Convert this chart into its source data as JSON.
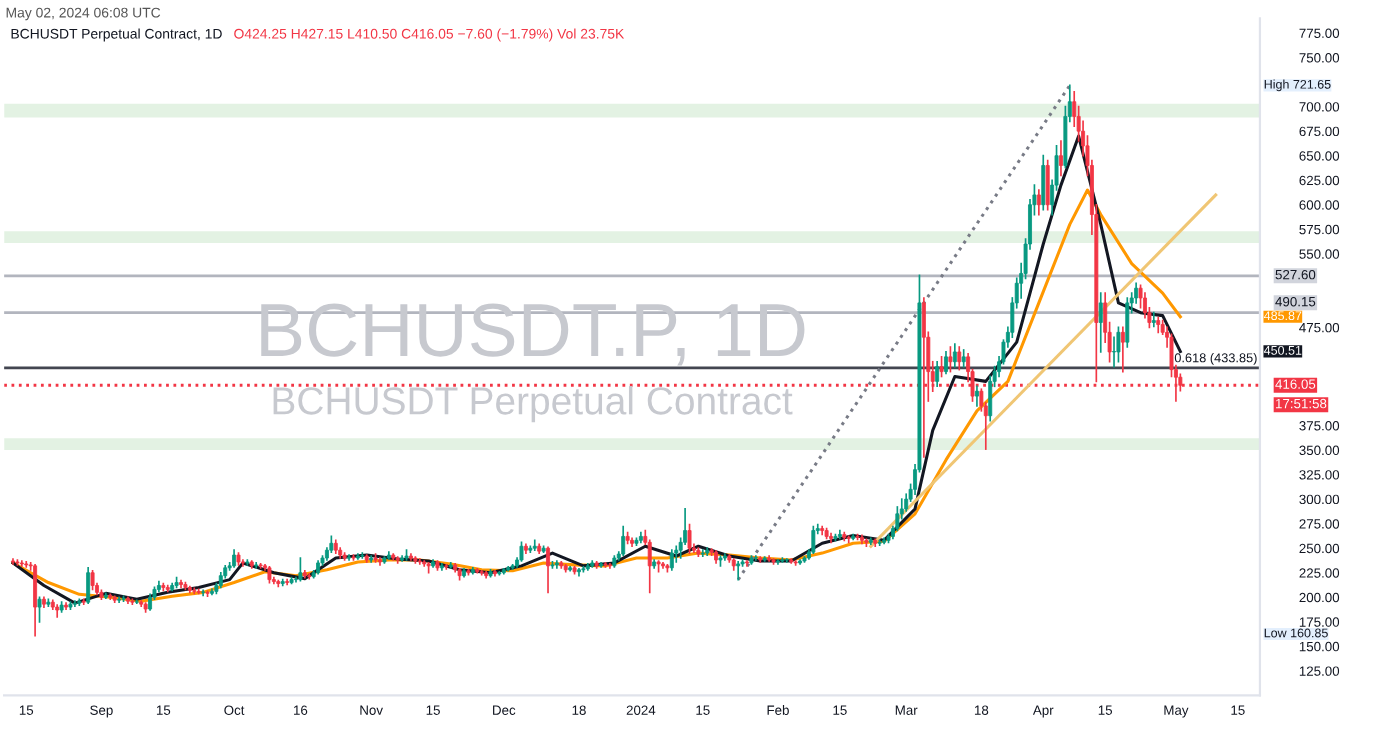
{
  "chart_data": {
    "type": "candlestick",
    "title": "BCHUSDT Perpetual Contract, 1D",
    "annotations": [
      "May 02, 2024 06:08 UTC",
      "O424.25 H427.15 L410.50 C416.05 −7.60 (−1.79%) Vol 23.75K",
      "BCHUSDT.P, 1D",
      "BCHUSDT Perpetual Contract",
      "17:51:58",
      "High 721.65",
      "Low 160.85",
      "485.87",
      "450.51"
    ],
    "colors": [
      "#f23645",
      "#f23645",
      "#f23645",
      "#f23645",
      "#f23645",
      "#f23645",
      "#089981",
      "#f23645",
      "#089981",
      "#f23645",
      "#f23645",
      "#089981",
      "#f23645",
      "#089981",
      "#089981",
      "#089981",
      "#f23645",
      "#089981",
      "#f23645",
      "#f23645",
      "#f23645",
      "#089981",
      "#f23645",
      "#f23645",
      "#089981",
      "#089981",
      "#f23645",
      "#f23645",
      "#089981",
      "#f23645",
      "#f23645",
      "#089981",
      "#089981",
      "#089981",
      "#f23645",
      "#f23645",
      "#089981",
      "#089981",
      "#f23645",
      "#f23645",
      "#f23645",
      "#f23645",
      "#f23645",
      "#089981",
      "#f23645",
      "#089981",
      "#089981",
      "#089981",
      "#089981",
      "#089981",
      "#089981",
      "#f23645",
      "#f23645",
      "#089981",
      "#f23645",
      "#089981",
      "#f23645",
      "#f23645",
      "#f23645",
      "#f23645",
      "#f23645",
      "#089981",
      "#f23645",
      "#089981",
      "#089981",
      "#089981",
      "#f23645",
      "#f23645",
      "#089981",
      "#089981",
      "#089981",
      "#089981",
      "#089981",
      "#f23645",
      "#f23645",
      "#f23645",
      "#089981",
      "#f23645",
      "#089981",
      "#089981",
      "#f23645",
      "#089981",
      "#f23645",
      "#f23645",
      "#089981",
      "#089981",
      "#f23645",
      "#f23645",
      "#089981",
      "#089981",
      "#f23645",
      "#f23645",
      "#f23645",
      "#f23645",
      "#f23645",
      "#089981",
      "#f23645",
      "#089981",
      "#f23645",
      "#089981",
      "#f23645",
      "#f23645",
      "#089981",
      "#f23645",
      "#089981",
      "#f23645",
      "#f23645",
      "#f23645",
      "#089981",
      "#f23645",
      "#089981",
      "#089981",
      "#089981",
      "#089981",
      "#089981",
      "#089981",
      "#f23645",
      "#089981",
      "#089981",
      "#f23645",
      "#089981",
      "#f23645",
      "#089981",
      "#089981",
      "#f23645",
      "#f23645",
      "#089981",
      "#f23645",
      "#089981",
      "#089981",
      "#089981",
      "#089981",
      "#f23645",
      "#089981",
      "#f23645",
      "#f23645",
      "#089981",
      "#089981",
      "#089981",
      "#f23645",
      "#f23645",
      "#089981",
      "#089981",
      "#f23645",
      "#f23645",
      "#089981",
      "#f23645",
      "#f23645",
      "#f23645",
      "#089981",
      "#089981",
      "#089981",
      "#089981",
      "#f23645",
      "#f23645",
      "#f23645",
      "#089981",
      "#089981",
      "#f23645",
      "#f23645",
      "#089981",
      "#089981",
      "#f23645",
      "#f23645",
      "#089981",
      "#089981",
      "#f23645",
      "#089981",
      "#089981",
      "#f23645",
      "#089981",
      "#f23645",
      "#f23645",
      "#089981",
      "#089981",
      "#089981",
      "#f23645",
      "#f23645",
      "#089981",
      "#089981",
      "#089981",
      "#089981",
      "#089981",
      "#f23645",
      "#f23645",
      "#f23645",
      "#089981",
      "#089981",
      "#f23645",
      "#f23645",
      "#089981",
      "#f23645",
      "#f23645",
      "#f23645",
      "#089981",
      "#f23645",
      "#089981",
      "#089981",
      "#089981",
      "#089981",
      "#089981",
      "#089981",
      "#089981",
      "#089981",
      "#089981",
      "#089981",
      "#f23645",
      "#f23645",
      "#f23645",
      "#089981",
      "#f23645",
      "#089981",
      "#f23645",
      "#089981",
      "#f23645",
      "#089981",
      "#f23645",
      "#f23645",
      "#089981",
      "#f23645",
      "#f23645",
      "#089981",
      "#089981",
      "#089981",
      "#089981",
      "#089981",
      "#089981",
      "#089981",
      "#089981",
      "#089981",
      "#089981",
      "#089981",
      "#f23645",
      "#089981",
      "#f23645",
      "#089981",
      "#089981",
      "#f23645",
      "#089981",
      "#089981",
      "#f23645",
      "#f23645",
      "#f23645",
      "#f23645",
      "#f23645",
      "#f23645",
      "#089981",
      "#f23645",
      "#f23645",
      "#089981",
      "#089981",
      "#f23645",
      "#089981",
      "#089981",
      "#089981",
      "#f23645",
      "#f23645",
      "#f23645",
      "#089981",
      "#f23645",
      "#f23645",
      "#f23645",
      "#f23645",
      "#f23645",
      "#f23645"
    ],
    "x": [
      "2023-08-12",
      "2023-08-13",
      "2023-08-14",
      "2023-08-15",
      "2023-08-16",
      "2023-08-17",
      "2023-08-18",
      "2023-08-19",
      "2023-08-20",
      "2023-08-21",
      "2023-08-22",
      "2023-08-23",
      "2023-08-24",
      "2023-08-25",
      "2023-08-26",
      "2023-08-27",
      "2023-08-28",
      "2023-08-29",
      "2023-08-30",
      "2023-08-31",
      "2023-09-01",
      "2023-09-02",
      "2023-09-03",
      "2023-09-04",
      "2023-09-05",
      "2023-09-06",
      "2023-09-07",
      "2023-09-08",
      "2023-09-09",
      "2023-09-10",
      "2023-09-11",
      "2023-09-12",
      "2023-09-13",
      "2023-09-14",
      "2023-09-15",
      "2023-09-16",
      "2023-09-17",
      "2023-09-18",
      "2023-09-19",
      "2023-09-20",
      "2023-09-21",
      "2023-09-22",
      "2023-09-23",
      "2023-09-24",
      "2023-09-25",
      "2023-09-26",
      "2023-09-27",
      "2023-09-28",
      "2023-09-29",
      "2023-09-30",
      "2023-10-01",
      "2023-10-02",
      "2023-10-03",
      "2023-10-04",
      "2023-10-05",
      "2023-10-06",
      "2023-10-07",
      "2023-10-08",
      "2023-10-09",
      "2023-10-10",
      "2023-10-11",
      "2023-10-12",
      "2023-10-13",
      "2023-10-14",
      "2023-10-15",
      "2023-10-16",
      "2023-10-17",
      "2023-10-18",
      "2023-10-19",
      "2023-10-20",
      "2023-10-21",
      "2023-10-22",
      "2023-10-23",
      "2023-10-24",
      "2023-10-25",
      "2023-10-26",
      "2023-10-27",
      "2023-10-28",
      "2023-10-29",
      "2023-10-30",
      "2023-10-31",
      "2023-11-01",
      "2023-11-02",
      "2023-11-03",
      "2023-11-04",
      "2023-11-05",
      "2023-11-06",
      "2023-11-07",
      "2023-11-08",
      "2023-11-09",
      "2023-11-10",
      "2023-11-11",
      "2023-11-12",
      "2023-11-13",
      "2023-11-14",
      "2023-11-15",
      "2023-11-16",
      "2023-11-17",
      "2023-11-18",
      "2023-11-19",
      "2023-11-20",
      "2023-11-21",
      "2023-11-22",
      "2023-11-23",
      "2023-11-24",
      "2023-11-25",
      "2023-11-26",
      "2023-11-27",
      "2023-11-28",
      "2023-11-29",
      "2023-11-30",
      "2023-12-01",
      "2023-12-02",
      "2023-12-03",
      "2023-12-04",
      "2023-12-05",
      "2023-12-06",
      "2023-12-07",
      "2023-12-08",
      "2023-12-09",
      "2023-12-10",
      "2023-12-11",
      "2023-12-12",
      "2023-12-13",
      "2023-12-14",
      "2023-12-15",
      "2023-12-16",
      "2023-12-17",
      "2023-12-18",
      "2023-12-19",
      "2023-12-20",
      "2023-12-21",
      "2023-12-22",
      "2023-12-23",
      "2023-12-24",
      "2023-12-25",
      "2023-12-26",
      "2023-12-27",
      "2023-12-28",
      "2023-12-29",
      "2023-12-30",
      "2023-12-31",
      "2024-01-01",
      "2024-01-02",
      "2024-01-03",
      "2024-01-04",
      "2024-01-05",
      "2024-01-06",
      "2024-01-07",
      "2024-01-08",
      "2024-01-09",
      "2024-01-10",
      "2024-01-11",
      "2024-01-12",
      "2024-01-13",
      "2024-01-14",
      "2024-01-15",
      "2024-01-16",
      "2024-01-17",
      "2024-01-18",
      "2024-01-19",
      "2024-01-20",
      "2024-01-21",
      "2024-01-22",
      "2024-01-23",
      "2024-01-24",
      "2024-01-25",
      "2024-01-26",
      "2024-01-27",
      "2024-01-28",
      "2024-01-29",
      "2024-01-30",
      "2024-01-31",
      "2024-02-01",
      "2024-02-02",
      "2024-02-03",
      "2024-02-04",
      "2024-02-05",
      "2024-02-06",
      "2024-02-07",
      "2024-02-08",
      "2024-02-09",
      "2024-02-10",
      "2024-02-11",
      "2024-02-12",
      "2024-02-13",
      "2024-02-14",
      "2024-02-15",
      "2024-02-16",
      "2024-02-17",
      "2024-02-18",
      "2024-02-19",
      "2024-02-20",
      "2024-02-21",
      "2024-02-22",
      "2024-02-23",
      "2024-02-24",
      "2024-02-25",
      "2024-02-26",
      "2024-02-27",
      "2024-02-28",
      "2024-02-29",
      "2024-03-01",
      "2024-03-02",
      "2024-03-03",
      "2024-03-04",
      "2024-03-05",
      "2024-03-06",
      "2024-03-07",
      "2024-03-08",
      "2024-03-09",
      "2024-03-10",
      "2024-03-11",
      "2024-03-12",
      "2024-03-13",
      "2024-03-14",
      "2024-03-15",
      "2024-03-16",
      "2024-03-17",
      "2024-03-18",
      "2024-03-19",
      "2024-03-20",
      "2024-03-21",
      "2024-03-22",
      "2024-03-23",
      "2024-03-24",
      "2024-03-25",
      "2024-03-26",
      "2024-03-27",
      "2024-03-28",
      "2024-03-29",
      "2024-03-30",
      "2024-03-31",
      "2024-04-01",
      "2024-04-02",
      "2024-04-03",
      "2024-04-04",
      "2024-04-05",
      "2024-04-06",
      "2024-04-07",
      "2024-04-08",
      "2024-04-09",
      "2024-04-10",
      "2024-04-11",
      "2024-04-12",
      "2024-04-13",
      "2024-04-14",
      "2024-04-15",
      "2024-04-16",
      "2024-04-17",
      "2024-04-18",
      "2024-04-19",
      "2024-04-20",
      "2024-04-21",
      "2024-04-22",
      "2024-04-23",
      "2024-04-24",
      "2024-04-25",
      "2024-04-26",
      "2024-04-27",
      "2024-04-28",
      "2024-04-29",
      "2024-04-30",
      "2024-05-01",
      "2024-05-02"
    ],
    "ohlc": [
      [
        237,
        239,
        234,
        236
      ],
      [
        236,
        238,
        233,
        235
      ],
      [
        235,
        237,
        232,
        234
      ],
      [
        234,
        236,
        231,
        233
      ],
      [
        233,
        235,
        228,
        232
      ],
      [
        232,
        233,
        160.85,
        190
      ],
      [
        190,
        200,
        175,
        198
      ],
      [
        198,
        200,
        190,
        193
      ],
      [
        193,
        198,
        191,
        195
      ],
      [
        195,
        197,
        188,
        190
      ],
      [
        190,
        192,
        180,
        187
      ],
      [
        187,
        195,
        185,
        192
      ],
      [
        192,
        194,
        188,
        190
      ],
      [
        190,
        195,
        188,
        193
      ],
      [
        193,
        196,
        191,
        194
      ],
      [
        194,
        198,
        192,
        196
      ],
      [
        196,
        198,
        193,
        195
      ],
      [
        195,
        230,
        194,
        225
      ],
      [
        225,
        227,
        208,
        212
      ],
      [
        212,
        214,
        203,
        205
      ],
      [
        205,
        207,
        198,
        200
      ],
      [
        200,
        204,
        199,
        202
      ],
      [
        202,
        203,
        198,
        200
      ],
      [
        200,
        201,
        195,
        197
      ],
      [
        197,
        200,
        195,
        198
      ],
      [
        198,
        201,
        196,
        199
      ],
      [
        199,
        200,
        194,
        196
      ],
      [
        196,
        198,
        193,
        195
      ],
      [
        195,
        197,
        194,
        195
      ],
      [
        195,
        196,
        191,
        193
      ],
      [
        193,
        194,
        185,
        188
      ],
      [
        188,
        203,
        187,
        200
      ],
      [
        200,
        210,
        198,
        208
      ],
      [
        208,
        216,
        206,
        212
      ],
      [
        212,
        214,
        207,
        210
      ],
      [
        210,
        212,
        206,
        208
      ],
      [
        208,
        214,
        207,
        212
      ],
      [
        212,
        220,
        210,
        215
      ],
      [
        215,
        217,
        210,
        213
      ],
      [
        213,
        215,
        208,
        210
      ],
      [
        210,
        211,
        205,
        207
      ],
      [
        207,
        209,
        204,
        206
      ],
      [
        206,
        208,
        204,
        205
      ],
      [
        205,
        207,
        202,
        205
      ],
      [
        205,
        206,
        201,
        204
      ],
      [
        204,
        208,
        203,
        206
      ],
      [
        206,
        214,
        204,
        212
      ],
      [
        212,
        225,
        210,
        222
      ],
      [
        222,
        232,
        220,
        230
      ],
      [
        230,
        235,
        228,
        232
      ],
      [
        232,
        248,
        231,
        243
      ],
      [
        243,
        245,
        233,
        236
      ],
      [
        236,
        238,
        232,
        235
      ],
      [
        235,
        238,
        233,
        236
      ],
      [
        236,
        237,
        230,
        232
      ],
      [
        232,
        235,
        230,
        233
      ],
      [
        233,
        234,
        230,
        232
      ],
      [
        232,
        233,
        228,
        230
      ],
      [
        230,
        231,
        215,
        218
      ],
      [
        218,
        220,
        214,
        216
      ],
      [
        216,
        217,
        211,
        214
      ],
      [
        214,
        218,
        212,
        216
      ],
      [
        216,
        218,
        213,
        215
      ],
      [
        215,
        220,
        214,
        218
      ],
      [
        218,
        220,
        216,
        218
      ],
      [
        218,
        240,
        217,
        225
      ],
      [
        225,
        227,
        220,
        222
      ],
      [
        222,
        224,
        219,
        221
      ],
      [
        221,
        227,
        220,
        225
      ],
      [
        225,
        237,
        224,
        235
      ],
      [
        235,
        242,
        233,
        240
      ],
      [
        240,
        250,
        238,
        248
      ],
      [
        248,
        262,
        246,
        255
      ],
      [
        255,
        258,
        245,
        248
      ],
      [
        248,
        250,
        240,
        243
      ],
      [
        243,
        245,
        238,
        240
      ],
      [
        240,
        243,
        238,
        241
      ],
      [
        241,
        243,
        238,
        240
      ],
      [
        240,
        244,
        239,
        242
      ],
      [
        242,
        245,
        240,
        242
      ],
      [
        242,
        243,
        236,
        238
      ],
      [
        238,
        242,
        236,
        240
      ],
      [
        240,
        244,
        236,
        238
      ],
      [
        238,
        240,
        233,
        236
      ],
      [
        236,
        241,
        235,
        240
      ],
      [
        240,
        246,
        239,
        243
      ],
      [
        243,
        244,
        238,
        240
      ],
      [
        240,
        241,
        235,
        238
      ],
      [
        238,
        242,
        237,
        240
      ],
      [
        240,
        248,
        238,
        242
      ],
      [
        242,
        244,
        238,
        240
      ],
      [
        240,
        241,
        235,
        237
      ],
      [
        237,
        239,
        234,
        236
      ],
      [
        236,
        237,
        232,
        234
      ],
      [
        234,
        235,
        225,
        232
      ],
      [
        232,
        238,
        231,
        236
      ],
      [
        236,
        237,
        228,
        230
      ],
      [
        230,
        234,
        228,
        232
      ],
      [
        232,
        233,
        229,
        231
      ],
      [
        231,
        235,
        230,
        233
      ],
      [
        233,
        234,
        226,
        228
      ],
      [
        228,
        229,
        218,
        222
      ],
      [
        222,
        229,
        221,
        227
      ],
      [
        227,
        228,
        223,
        225
      ],
      [
        225,
        230,
        224,
        228
      ],
      [
        228,
        229,
        225,
        226
      ],
      [
        226,
        227,
        223,
        225
      ],
      [
        225,
        226,
        220,
        222
      ],
      [
        222,
        228,
        221,
        226
      ],
      [
        226,
        227,
        222,
        224
      ],
      [
        224,
        226,
        223,
        225
      ],
      [
        225,
        229,
        224,
        228
      ],
      [
        228,
        231,
        227,
        230
      ],
      [
        230,
        233,
        229,
        232
      ],
      [
        232,
        240,
        231,
        238
      ],
      [
        238,
        256,
        237,
        252
      ],
      [
        252,
        254,
        245,
        248
      ],
      [
        248,
        252,
        246,
        250
      ],
      [
        250,
        258,
        248,
        252
      ],
      [
        252,
        254,
        245,
        247
      ],
      [
        247,
        252,
        246,
        250
      ],
      [
        250,
        251,
        205,
        232
      ],
      [
        232,
        236,
        230,
        233
      ],
      [
        233,
        237,
        230,
        235
      ],
      [
        235,
        236,
        230,
        232
      ],
      [
        232,
        233,
        226,
        228
      ],
      [
        228,
        231,
        227,
        230
      ],
      [
        230,
        231,
        224,
        226
      ],
      [
        226,
        229,
        222,
        228
      ],
      [
        228,
        231,
        226,
        229
      ],
      [
        229,
        234,
        228,
        232
      ],
      [
        232,
        237,
        231,
        235
      ],
      [
        235,
        236,
        230,
        232
      ],
      [
        232,
        235,
        231,
        234
      ],
      [
        234,
        235,
        231,
        233
      ],
      [
        233,
        234,
        230,
        232
      ],
      [
        232,
        242,
        231,
        240
      ],
      [
        240,
        246,
        238,
        244
      ],
      [
        244,
        272,
        243,
        262
      ],
      [
        262,
        266,
        255,
        258
      ],
      [
        258,
        260,
        252,
        255
      ],
      [
        255,
        260,
        253,
        258
      ],
      [
        258,
        266,
        256,
        262
      ],
      [
        262,
        268,
        254,
        256
      ],
      [
        256,
        258,
        205,
        232
      ],
      [
        232,
        238,
        230,
        236
      ],
      [
        236,
        237,
        226,
        234
      ],
      [
        234,
        235,
        230,
        232
      ],
      [
        232,
        233,
        226,
        230
      ],
      [
        230,
        248,
        228,
        245
      ],
      [
        245,
        252,
        236,
        248
      ],
      [
        248,
        260,
        240,
        256
      ],
      [
        256,
        290,
        254,
        268
      ],
      [
        268,
        274,
        245,
        250
      ],
      [
        250,
        254,
        246,
        248
      ],
      [
        248,
        250,
        242,
        244
      ],
      [
        244,
        248,
        242,
        245
      ],
      [
        245,
        250,
        243,
        248
      ],
      [
        248,
        249,
        243,
        246
      ],
      [
        246,
        247,
        235,
        238
      ],
      [
        238,
        242,
        232,
        240
      ],
      [
        240,
        244,
        238,
        242
      ],
      [
        242,
        243,
        236,
        238
      ],
      [
        238,
        239,
        228,
        232
      ],
      [
        232,
        236,
        218,
        234
      ],
      [
        234,
        238,
        232,
        236
      ],
      [
        236,
        237,
        232,
        235
      ],
      [
        235,
        242,
        234,
        240
      ],
      [
        240,
        242,
        238,
        240
      ],
      [
        240,
        241,
        236,
        238
      ],
      [
        238,
        241,
        237,
        240
      ],
      [
        240,
        242,
        237,
        238
      ],
      [
        238,
        239,
        234,
        236
      ],
      [
        236,
        238,
        234,
        237
      ],
      [
        237,
        240,
        236,
        238
      ],
      [
        238,
        239,
        236,
        238
      ],
      [
        238,
        239,
        235,
        236
      ],
      [
        236,
        237,
        233,
        235
      ],
      [
        235,
        238,
        234,
        237
      ],
      [
        237,
        241,
        236,
        240
      ],
      [
        240,
        248,
        239,
        246
      ],
      [
        246,
        272,
        245,
        268
      ],
      [
        268,
        274,
        265,
        270
      ],
      [
        270,
        272,
        264,
        268
      ],
      [
        268,
        270,
        260,
        262
      ],
      [
        262,
        265,
        256,
        260
      ],
      [
        260,
        264,
        258,
        262
      ],
      [
        262,
        268,
        260,
        264
      ],
      [
        264,
        266,
        258,
        261
      ],
      [
        261,
        262,
        256,
        260
      ],
      [
        260,
        264,
        259,
        262
      ],
      [
        262,
        264,
        259,
        261
      ],
      [
        261,
        263,
        255,
        258
      ],
      [
        258,
        259,
        252,
        256
      ],
      [
        256,
        260,
        254,
        258
      ],
      [
        258,
        259,
        252,
        255
      ],
      [
        255,
        258,
        253,
        256
      ],
      [
        256,
        260,
        255,
        258
      ],
      [
        258,
        264,
        256,
        262
      ],
      [
        262,
        272,
        260,
        270
      ],
      [
        270,
        292,
        268,
        285
      ],
      [
        285,
        300,
        280,
        290
      ],
      [
        290,
        305,
        288,
        300
      ],
      [
        300,
        315,
        298,
        310
      ],
      [
        310,
        335,
        305,
        330
      ],
      [
        330,
        528,
        328,
        500
      ],
      [
        500,
        505,
        343,
        465
      ],
      [
        465,
        470,
        400,
        430
      ],
      [
        430,
        440,
        410,
        420
      ],
      [
        420,
        440,
        415,
        435
      ],
      [
        435,
        445,
        425,
        430
      ],
      [
        430,
        450,
        428,
        445
      ],
      [
        445,
        455,
        430,
        440
      ],
      [
        440,
        458,
        435,
        450
      ],
      [
        450,
        455,
        432,
        440
      ],
      [
        440,
        452,
        435,
        445
      ],
      [
        445,
        448,
        420,
        430
      ],
      [
        430,
        432,
        400,
        405
      ],
      [
        405,
        415,
        395,
        410
      ],
      [
        410,
        412,
        390,
        395
      ],
      [
        395,
        398,
        351,
        385
      ],
      [
        385,
        425,
        380,
        420
      ],
      [
        420,
        435,
        415,
        430
      ],
      [
        430,
        445,
        425,
        440
      ],
      [
        440,
        462,
        438,
        460
      ],
      [
        460,
        475,
        455,
        470
      ],
      [
        470,
        505,
        465,
        500
      ],
      [
        500,
        525,
        495,
        520
      ],
      [
        520,
        540,
        505,
        530
      ],
      [
        530,
        565,
        525,
        560
      ],
      [
        560,
        605,
        555,
        600
      ],
      [
        600,
        620,
        590,
        610
      ],
      [
        610,
        615,
        590,
        600
      ],
      [
        600,
        650,
        595,
        640
      ],
      [
        640,
        645,
        595,
        600
      ],
      [
        600,
        625,
        590,
        620
      ],
      [
        620,
        660,
        615,
        650
      ],
      [
        650,
        665,
        630,
        640
      ],
      [
        640,
        700,
        638,
        690
      ],
      [
        690,
        721.65,
        685,
        705
      ],
      [
        705,
        715,
        680,
        690
      ],
      [
        690,
        700,
        665,
        675
      ],
      [
        675,
        685,
        650,
        660
      ],
      [
        660,
        670,
        630,
        640
      ],
      [
        640,
        645,
        570,
        590
      ],
      [
        590,
        600,
        420,
        480
      ],
      [
        480,
        510,
        450,
        500
      ],
      [
        500,
        510,
        460,
        470
      ],
      [
        470,
        480,
        440,
        450
      ],
      [
        450,
        465,
        435,
        450
      ],
      [
        450,
        475,
        440,
        470
      ],
      [
        470,
        475,
        430,
        460
      ],
      [
        460,
        505,
        455,
        500
      ],
      [
        500,
        510,
        490,
        505
      ],
      [
        505,
        520,
        500,
        515
      ],
      [
        515,
        518,
        495,
        505
      ],
      [
        505,
        510,
        485,
        490
      ],
      [
        490,
        495,
        475,
        480
      ],
      [
        480,
        490,
        476,
        482
      ],
      [
        482,
        485,
        470,
        478
      ],
      [
        478,
        482,
        468,
        470
      ],
      [
        470,
        475,
        455,
        465
      ],
      [
        465,
        468,
        425,
        432
      ],
      [
        432,
        436,
        400,
        424.25
      ],
      [
        424.25,
        427.15,
        410.5,
        416.05
      ]
    ],
    "series": [
      {
        "type": "line",
        "color": "#ff9800",
        "x": [
          "2023-08-12",
          "2023-08-20",
          "2023-08-27",
          "2023-09-03",
          "2023-09-10",
          "2023-09-17",
          "2023-09-24",
          "2023-10-01",
          "2023-10-08",
          "2023-10-15",
          "2023-10-22",
          "2023-10-29",
          "2023-11-05",
          "2023-11-12",
          "2023-11-19",
          "2023-11-26",
          "2023-12-03",
          "2023-12-10",
          "2023-12-17",
          "2023-12-24",
          "2023-12-31",
          "2024-01-07",
          "2024-01-14",
          "2024-01-21",
          "2024-01-28",
          "2024-02-04",
          "2024-02-11",
          "2024-02-18",
          "2024-02-25",
          "2024-03-03",
          "2024-03-10",
          "2024-03-17",
          "2024-03-24",
          "2024-03-31",
          "2024-04-07",
          "2024-04-11",
          "2024-04-14",
          "2024-04-21",
          "2024-04-28",
          "2024-05-02"
        ],
        "values": [
          235,
          215,
          203,
          200,
          196,
          201,
          205,
          215,
          226,
          222,
          228,
          236,
          238,
          238,
          234,
          228,
          227,
          235,
          233,
          232,
          240,
          240,
          245,
          243,
          240,
          238,
          245,
          255,
          257,
          285,
          340,
          390,
          420,
          500,
          580,
          615,
          590,
          540,
          510,
          485.87
        ]
      },
      {
        "type": "line",
        "color": "#131722",
        "x": [
          "2023-08-12",
          "2023-08-19",
          "2023-08-26",
          "2023-09-02",
          "2023-09-09",
          "2023-09-16",
          "2023-09-23",
          "2023-09-30",
          "2023-10-03",
          "2023-10-10",
          "2023-10-17",
          "2023-10-24",
          "2023-10-31",
          "2023-11-07",
          "2023-11-14",
          "2023-11-21",
          "2023-11-28",
          "2023-12-05",
          "2023-12-12",
          "2023-12-19",
          "2023-12-26",
          "2024-01-02",
          "2024-01-09",
          "2024-01-14",
          "2024-01-21",
          "2024-01-28",
          "2024-02-04",
          "2024-02-11",
          "2024-02-18",
          "2024-02-25",
          "2024-03-03",
          "2024-03-07",
          "2024-03-12",
          "2024-03-19",
          "2024-03-26",
          "2024-04-01",
          "2024-04-05",
          "2024-04-09",
          "2024-04-14",
          "2024-04-18",
          "2024-04-23",
          "2024-04-28",
          "2024-05-02"
        ],
        "values": [
          235,
          212,
          194,
          204,
          198,
          205,
          210,
          218,
          235,
          225,
          219,
          240,
          243,
          239,
          237,
          228,
          225,
          232,
          245,
          232,
          235,
          252,
          242,
          252,
          242,
          237,
          237,
          255,
          263,
          258,
          290,
          370,
          425,
          420,
          460,
          560,
          620,
          670,
          580,
          500,
          490,
          487,
          450.51
        ]
      },
      {
        "type": "line",
        "color": "#787b86",
        "line_style": "dotted",
        "x": [
          "2024-01-23",
          "2024-04-07"
        ],
        "values": [
          218,
          721.65
        ]
      },
      {
        "type": "line",
        "color": "#f0c674",
        "x": [
          "2024-02-22",
          "2024-05-10"
        ],
        "values": [
          252,
          610
        ]
      }
    ],
    "ref_lines": [
      {
        "axis": "y",
        "value": 527.6,
        "label": "527.60",
        "color": "#b2b5be"
      },
      {
        "axis": "y",
        "value": 490.15,
        "label": "490.15",
        "color": "#b2b5be"
      },
      {
        "axis": "y",
        "value": 433.85,
        "label": "0.618 (433.85)",
        "color": "#434651"
      },
      {
        "axis": "y",
        "value": 416.05,
        "label": "416.05",
        "color": "#f23645",
        "line_style": "dotted"
      }
    ],
    "bands": [
      {
        "axis": "y",
        "from": 689,
        "to": 703,
        "color": "#e3f2e3"
      },
      {
        "axis": "y",
        "from": 561,
        "to": 573,
        "color": "#e3f2e3"
      },
      {
        "axis": "y",
        "from": 350,
        "to": 362,
        "color": "#e3f2e3"
      }
    ],
    "xlim": [
      "2023-08-10",
      "2024-05-20"
    ],
    "xticks": [
      {
        "value": "2023-08-15",
        "label": "15"
      },
      {
        "value": "2023-09-01",
        "label": "Sep"
      },
      {
        "value": "2023-09-15",
        "label": "15"
      },
      {
        "value": "2023-10-01",
        "label": "Oct"
      },
      {
        "value": "2023-10-16",
        "label": "16"
      },
      {
        "value": "2023-11-01",
        "label": "Nov"
      },
      {
        "value": "2023-11-15",
        "label": "15"
      },
      {
        "value": "2023-12-01",
        "label": "Dec"
      },
      {
        "value": "2023-12-18",
        "label": "18"
      },
      {
        "value": "2024-01-01",
        "label": "2024"
      },
      {
        "value": "2024-01-15",
        "label": "15"
      },
      {
        "value": "2024-02-01",
        "label": "Feb"
      },
      {
        "value": "2024-02-15",
        "label": "15"
      },
      {
        "value": "2024-03-01",
        "label": "Mar"
      },
      {
        "value": "2024-03-18",
        "label": "18"
      },
      {
        "value": "2024-04-01",
        "label": "Apr"
      },
      {
        "value": "2024-04-15",
        "label": "15"
      },
      {
        "value": "2024-05-01",
        "label": "May"
      },
      {
        "value": "2024-05-15",
        "label": "15"
      }
    ],
    "ylim": [
      100,
      790
    ],
    "yticks": [
      {
        "value": 125,
        "label": "125.00"
      },
      {
        "value": 150,
        "label": "150.00"
      },
      {
        "value": 175,
        "label": "175.00"
      },
      {
        "value": 200,
        "label": "200.00"
      },
      {
        "value": 225,
        "label": "225.00"
      },
      {
        "value": 250,
        "label": "250.00"
      },
      {
        "value": 275,
        "label": "275.00"
      },
      {
        "value": 300,
        "label": "300.00"
      },
      {
        "value": 325,
        "label": "325.00"
      },
      {
        "value": 350,
        "label": "350.00"
      },
      {
        "value": 375,
        "label": "375.00"
      },
      {
        "value": 475,
        "label": "475.00"
      },
      {
        "value": 550,
        "label": "550.00"
      },
      {
        "value": 575,
        "label": "575.00"
      },
      {
        "value": 600,
        "label": "600.00"
      },
      {
        "value": 625,
        "label": "625.00"
      },
      {
        "value": 650,
        "label": "650.00"
      },
      {
        "value": 675,
        "label": "675.00"
      },
      {
        "value": 700,
        "label": "700.00"
      },
      {
        "value": 750,
        "label": "750.00"
      },
      {
        "value": 775,
        "label": "775.00"
      }
    ],
    "grid": false,
    "marker": "none",
    "line_style": "solid"
  }
}
